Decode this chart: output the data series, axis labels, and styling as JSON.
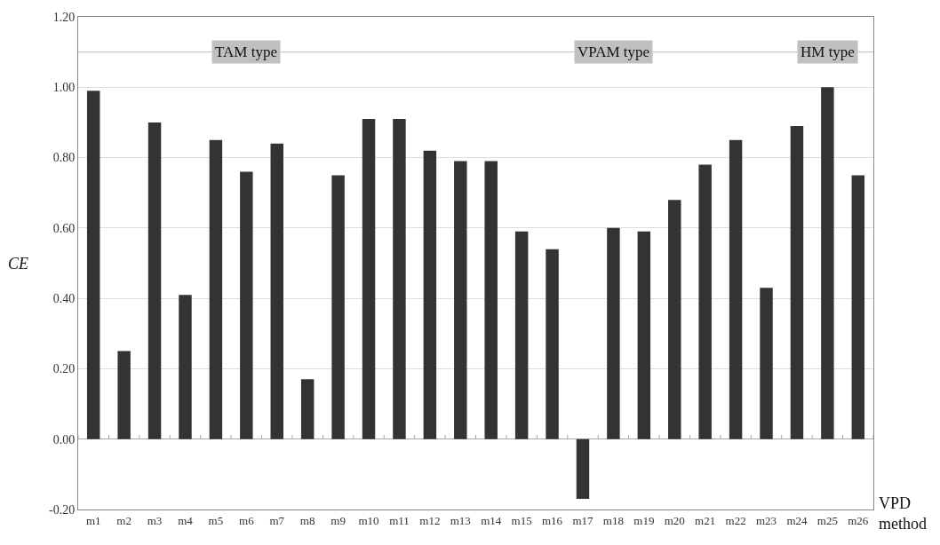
{
  "chart_data": {
    "type": "bar",
    "xlabel": "VPD method",
    "ylabel": "CE",
    "categories": [
      "m1",
      "m2",
      "m3",
      "m4",
      "m5",
      "m6",
      "m7",
      "m8",
      "m9",
      "m10",
      "m11",
      "m12",
      "m13",
      "m14",
      "m15",
      "m16",
      "m17",
      "m18",
      "m19",
      "m20",
      "m21",
      "m22",
      "m23",
      "m24",
      "m25",
      "m26"
    ],
    "values": [
      0.99,
      0.25,
      0.9,
      0.41,
      0.85,
      0.76,
      0.84,
      0.17,
      0.75,
      0.91,
      0.91,
      0.82,
      0.79,
      0.79,
      0.59,
      0.54,
      -0.17,
      0.6,
      0.59,
      0.68,
      0.78,
      0.85,
      0.43,
      0.89,
      1.0,
      0.75
    ],
    "color": "#333333",
    "ylim": [
      -0.2,
      1.2
    ],
    "yticks": [
      {
        "value": -0.2,
        "label": "-0.20"
      },
      {
        "value": 0,
        "label": "0.00"
      },
      {
        "value": 0.2,
        "label": "0.20"
      },
      {
        "value": 0.4,
        "label": "0.40"
      },
      {
        "value": 0.6,
        "label": "0.60"
      },
      {
        "value": 0.8,
        "label": "0.80"
      },
      {
        "value": 1.0,
        "label": "1.00"
      },
      {
        "value": 1.2,
        "label": "1.20"
      }
    ],
    "grid": "y",
    "ref_lines": [
      {
        "axis": "y",
        "value": 1.1,
        "color": "#bbbbbb"
      }
    ],
    "annotations": [
      {
        "text": "TAM type",
        "x": "m6",
        "y": 1.1
      },
      {
        "text": "VPAM type",
        "x": "m18",
        "y": 1.1
      },
      {
        "text": "HM type",
        "x": "m25",
        "y": 1.1
      }
    ]
  }
}
